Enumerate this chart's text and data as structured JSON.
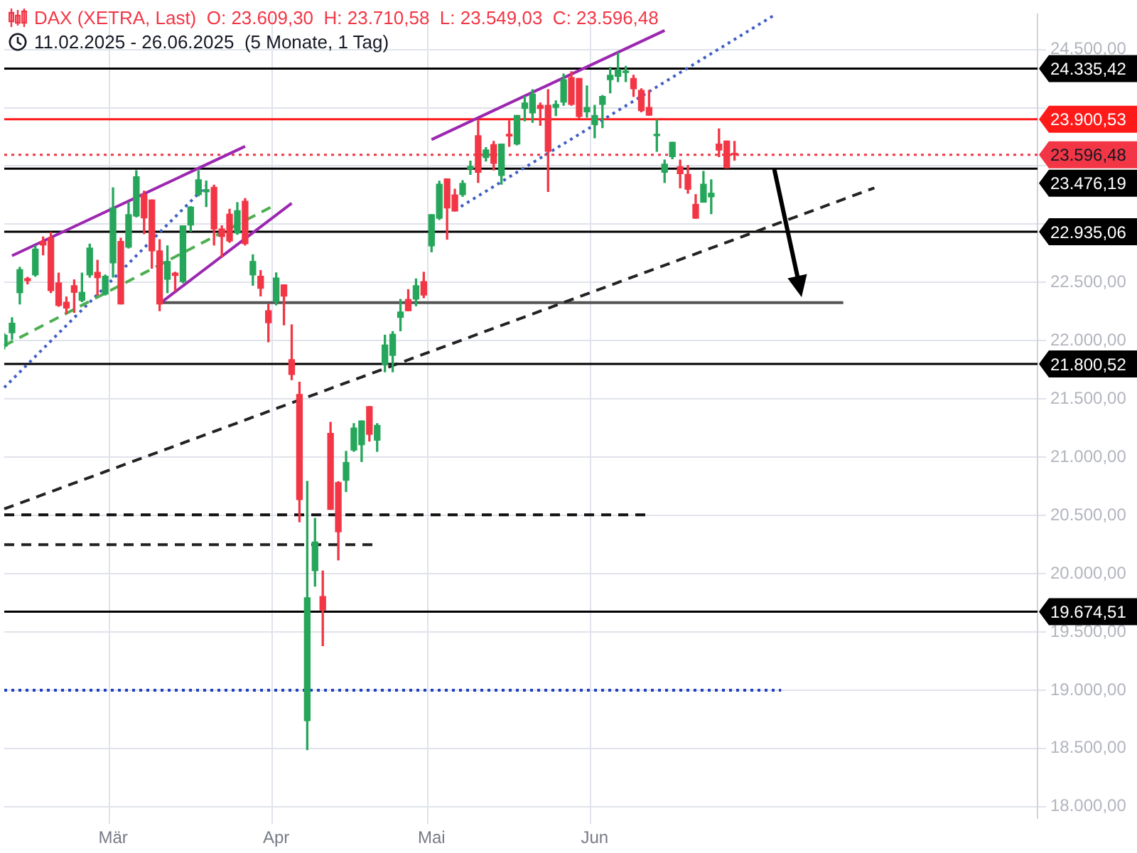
{
  "chart_data": {
    "type": "candlestick",
    "title": "DAX (XETRA, Last)  O: 23.609,30  H: 23.710,58  L: 23.549,03  C: 23.596,48",
    "subtitle": "11.02.2025 - 26.06.2025  (5 Monate, 1 Tag)",
    "categories": [
      null,
      null,
      null,
      null,
      null,
      null,
      null,
      null,
      null,
      null,
      null,
      null,
      null,
      null,
      "Mär",
      null,
      null,
      null,
      null,
      null,
      null,
      null,
      null,
      null,
      null,
      null,
      null,
      null,
      null,
      null,
      null,
      null,
      null,
      null,
      null,
      "Apr",
      null,
      null,
      null,
      null,
      null,
      null,
      null,
      null,
      null,
      null,
      null,
      null,
      null,
      null,
      null,
      null,
      null,
      null,
      null,
      "Mai",
      null,
      null,
      null,
      null,
      null,
      null,
      null,
      null,
      null,
      null,
      null,
      null,
      null,
      null,
      null,
      null,
      null,
      null,
      null,
      null,
      "Jun",
      null,
      null,
      null,
      null,
      null,
      null,
      null,
      null,
      null,
      null,
      null,
      null,
      null,
      null,
      null,
      null,
      null,
      null,
      null,
      null,
      null,
      null,
      null,
      null,
      null,
      null,
      null,
      null,
      null,
      null,
      null,
      null,
      null,
      null,
      null,
      null,
      null,
      null,
      null,
      null,
      null,
      null,
      null,
      null,
      null,
      null,
      null,
      null,
      null,
      null,
      null,
      null,
      null,
      null,
      null,
      null,
      null
    ],
    "ohlc": [
      [
        21952,
        22060,
        21930,
        22047
      ],
      [
        22068,
        22197,
        22013,
        22150
      ],
      [
        22412,
        22630,
        22315,
        22610
      ],
      [
        22533,
        22544,
        22487,
        22515
      ],
      [
        22565,
        22813,
        22553,
        22786
      ],
      [
        22852,
        22890,
        22737,
        22821
      ],
      [
        22883,
        22929,
        22412,
        22430
      ],
      [
        22496,
        22580,
        22295,
        22303
      ],
      [
        22330,
        22375,
        22234,
        22280
      ],
      [
        22472,
        22522,
        22243,
        22415
      ],
      [
        22346,
        22580,
        22335,
        22415
      ],
      [
        22565,
        22829,
        22545,
        22795
      ],
      [
        22587,
        22690,
        22392,
        22541
      ],
      [
        22400,
        22564,
        22392,
        22553
      ],
      [
        22668,
        23312,
        22545,
        23140
      ],
      [
        22852,
        22880,
        22315,
        22315
      ],
      [
        22803,
        23185,
        22795,
        23082
      ],
      [
        23070,
        23459,
        23062,
        23407
      ],
      [
        23254,
        23284,
        22918,
        23054
      ],
      [
        23208,
        23208,
        22622,
        22771
      ],
      [
        22771,
        22867,
        22257,
        22315
      ],
      [
        22527,
        22814,
        22412,
        22680
      ],
      [
        22580,
        22588,
        22430,
        22560
      ],
      [
        22508,
        22986,
        22497,
        22986
      ],
      [
        22993,
        23151,
        22939,
        23147
      ],
      [
        23254,
        23459,
        23243,
        23381
      ],
      [
        23278,
        23370,
        23151,
        23297
      ],
      [
        23316,
        23335,
        22821,
        22959
      ],
      [
        22959,
        22986,
        22720,
        22894
      ],
      [
        23086,
        23128,
        22844,
        22856
      ],
      [
        22924,
        23185,
        22913,
        23116
      ],
      [
        23197,
        23220,
        22821,
        22833
      ],
      [
        22565,
        22737,
        22476,
        22680
      ],
      [
        22553,
        22602,
        22384,
        22450
      ],
      [
        22257,
        22315,
        21990,
        22154
      ],
      [
        22335,
        22582,
        22307,
        22538
      ],
      [
        22479,
        22479,
        22136,
        22383
      ],
      [
        21837,
        22136,
        21665,
        21710
      ],
      [
        21538,
        21644,
        20445,
        20636
      ],
      [
        18738,
        20793,
        18490,
        19793
      ],
      [
        20026,
        20475,
        19893,
        20272
      ],
      [
        19804,
        20023,
        19382,
        19689
      ],
      [
        21204,
        21299,
        20552,
        20552
      ],
      [
        20782,
        20790,
        20118,
        20360
      ],
      [
        20802,
        21050,
        20705,
        20954
      ],
      [
        21061,
        21288,
        21050,
        21250
      ],
      [
        21107,
        21311,
        20962,
        21311
      ],
      [
        21434,
        21434,
        21138,
        21196
      ],
      [
        21146,
        21288,
        21050,
        21273
      ],
      [
        21797,
        22047,
        21733,
        21963
      ],
      [
        21874,
        22078,
        21733,
        22055
      ],
      [
        22200,
        22354,
        22085,
        22246
      ],
      [
        22354,
        22438,
        22257,
        22257
      ],
      [
        22357,
        22530,
        22300,
        22472
      ],
      [
        22507,
        22587,
        22369,
        22392
      ],
      [
        22814,
        23082,
        22763,
        23082
      ],
      [
        23051,
        23369,
        23040,
        23343
      ],
      [
        23389,
        23389,
        22871,
        23139
      ],
      [
        23251,
        23300,
        23113,
        23113
      ],
      [
        23254,
        23373,
        23239,
        23350
      ],
      [
        23476,
        23542,
        23427,
        23496
      ],
      [
        23760,
        23887,
        23358,
        23446
      ],
      [
        23573,
        23657,
        23542,
        23637
      ],
      [
        23683,
        23710,
        23465,
        23522
      ],
      [
        23419,
        23688,
        23343,
        23688
      ],
      [
        23772,
        23887,
        23668,
        23757
      ],
      [
        23688,
        23933,
        23680,
        23933
      ],
      [
        23994,
        24097,
        23887,
        24040
      ],
      [
        23956,
        24155,
        23875,
        24117
      ],
      [
        24021,
        24040,
        23849,
        23994
      ],
      [
        24021,
        24155,
        23281,
        23626
      ],
      [
        24002,
        24059,
        23933,
        24028
      ],
      [
        24048,
        24289,
        24021,
        24240
      ],
      [
        24258,
        24309,
        24021,
        24028
      ],
      [
        24251,
        24251,
        23910,
        23925
      ],
      [
        23964,
        24186,
        23918,
        24002
      ],
      [
        23856,
        24021,
        23741,
        23933
      ],
      [
        24028,
        24105,
        23829,
        24097
      ],
      [
        24240,
        24347,
        24128,
        24278
      ],
      [
        24270,
        24470,
        24224,
        24327
      ],
      [
        24302,
        24355,
        24224,
        24310
      ],
      [
        24251,
        24278,
        24097,
        24163
      ],
      [
        24148,
        24163,
        23964,
        23975
      ],
      [
        24002,
        24148,
        23936,
        23936
      ],
      [
        23760,
        23895,
        23626,
        23772
      ],
      [
        23446,
        23550,
        23358,
        23515
      ],
      [
        23580,
        23703,
        23561,
        23703
      ],
      [
        23492,
        23550,
        23312,
        23434
      ],
      [
        23427,
        23504,
        23266,
        23300
      ],
      [
        23170,
        23254,
        23051,
        23051
      ],
      [
        23189,
        23453,
        23189,
        23343
      ],
      [
        23235,
        23381,
        23090,
        23266
      ],
      [
        23688,
        23818,
        23580,
        23637
      ],
      [
        23714,
        23714,
        23484,
        23484
      ],
      [
        23609.3,
        23710.58,
        23549.03,
        23596.48
      ],
      null,
      null,
      null,
      null,
      null,
      null,
      null,
      null,
      null,
      null,
      null,
      null,
      null,
      null,
      null,
      null,
      null,
      null,
      null,
      null,
      null,
      null,
      null,
      null,
      null,
      null,
      null,
      null,
      null,
      null,
      null,
      null,
      null,
      null,
      null,
      null,
      null,
      null,
      null
    ],
    "colors": [
      "#26a65b",
      "#26a65b",
      "#26a65b",
      "#f23645",
      "#26a65b",
      "#f23645",
      "#f23645",
      "#f23645",
      "#f23645",
      "#f23645",
      "#26a65b",
      "#26a65b",
      "#f23645",
      "#26a65b",
      "#26a65b",
      "#f23645",
      "#26a65b",
      "#26a65b",
      "#f23645",
      "#f23645",
      "#f23645",
      "#26a65b",
      "#f23645",
      "#26a65b",
      "#26a65b",
      "#26a65b",
      "#26a65b",
      "#f23645",
      "#f23645",
      "#f23645",
      "#26a65b",
      "#f23645",
      "#26a65b",
      "#f23645",
      "#f23645",
      "#26a65b",
      "#f23645",
      "#f23645",
      "#f23645",
      "#26a65b",
      "#26a65b",
      "#f23645",
      "#f23645",
      "#f23645",
      "#26a65b",
      "#26a65b",
      "#26a65b",
      "#f23645",
      "#26a65b",
      "#26a65b",
      "#26a65b",
      "#26a65b",
      "#f23645",
      "#26a65b",
      "#f23645",
      "#26a65b",
      "#26a65b",
      "#f23645",
      "#f23645",
      "#26a65b",
      "#26a65b",
      "#f23645",
      "#26a65b",
      "#f23645",
      "#26a65b",
      "#f23645",
      "#26a65b",
      "#26a65b",
      "#26a65b",
      "#f23645",
      "#f23645",
      "#26a65b",
      "#26a65b",
      "#f23645",
      "#f23645",
      "#26a65b",
      "#26a65b",
      "#26a65b",
      "#26a65b",
      "#26a65b",
      "#26a65b",
      "#f23645",
      "#f23645",
      "#f23645",
      "#26a65b",
      "#26a65b",
      "#26a65b",
      "#f23645",
      "#f23645",
      "#f23645",
      "#26a65b",
      "#26a65b",
      "#f23645",
      "#f23645",
      "#f23645",
      null,
      null,
      null,
      null,
      null,
      null,
      null,
      null,
      null,
      null,
      null,
      null,
      null,
      null,
      null,
      null,
      null,
      null,
      null,
      null,
      null,
      null,
      null,
      null,
      null,
      null,
      null,
      null,
      null,
      null,
      null,
      null,
      null,
      null,
      null,
      null,
      null,
      null,
      null
    ],
    "series": [
      {
        "type": "line",
        "color": "#9c27b0",
        "line_style": "solid",
        "values": [
          null,
          22729,
          null,
          null,
          null,
          null,
          null,
          null,
          null,
          null,
          null,
          null,
          null,
          null,
          null,
          null,
          null,
          null,
          null,
          null,
          null,
          null,
          null,
          null,
          null,
          null,
          null,
          null,
          null,
          null,
          null,
          23668,
          null,
          null,
          null,
          null,
          null,
          null,
          null,
          null,
          null,
          null,
          null,
          null,
          null,
          null,
          null,
          null,
          null,
          null,
          null,
          null,
          null,
          null,
          null,
          null,
          null,
          null,
          null,
          null,
          null,
          null,
          null,
          null,
          null,
          null,
          null,
          null,
          null,
          null,
          null,
          null,
          null,
          null,
          null,
          null,
          null,
          null,
          null,
          null,
          null,
          null,
          null,
          null,
          null,
          null,
          null,
          null,
          null,
          null,
          null,
          null,
          null,
          null,
          null,
          null,
          null,
          null,
          null,
          null,
          null,
          null,
          null,
          null,
          null,
          null,
          null,
          null,
          null,
          null,
          null,
          null,
          null,
          null,
          null,
          null,
          null,
          null,
          null,
          null,
          null,
          null,
          null,
          null,
          null,
          null,
          null,
          null,
          null,
          null,
          null,
          null,
          null,
          null
        ]
      },
      {
        "type": "line",
        "color": "#9c27b0",
        "line_style": "solid",
        "values": [
          null,
          null,
          null,
          null,
          null,
          null,
          null,
          null,
          null,
          null,
          null,
          null,
          null,
          null,
          null,
          null,
          null,
          null,
          null,
          null,
          22318,
          null,
          null,
          null,
          null,
          null,
          null,
          null,
          null,
          null,
          null,
          null,
          null,
          null,
          null,
          null,
          null,
          23180,
          null,
          null,
          null,
          null,
          null,
          null,
          null,
          null,
          null,
          null,
          null,
          null,
          null,
          null,
          null,
          null,
          null,
          null,
          null,
          null,
          null,
          null,
          null,
          null,
          null,
          null,
          null,
          null,
          null,
          null,
          null,
          null,
          null,
          null,
          null,
          null,
          null,
          null,
          null,
          null,
          null,
          null,
          null,
          null,
          null,
          null,
          null,
          null,
          null,
          null,
          null,
          null,
          null,
          null,
          null,
          null,
          null,
          null,
          null,
          null,
          null,
          null,
          null,
          null,
          null,
          null,
          null,
          null,
          null,
          null,
          null,
          null,
          null,
          null,
          null,
          null,
          null,
          null,
          null,
          null,
          null,
          null,
          null,
          null,
          null,
          null,
          null,
          null,
          null,
          null,
          null,
          null,
          null,
          null,
          null,
          null
        ]
      },
      {
        "type": "line",
        "color": "#4caf50",
        "line_style": "dashed",
        "values": [
          21958,
          null,
          null,
          null,
          null,
          null,
          null,
          null,
          null,
          null,
          null,
          null,
          null,
          null,
          null,
          null,
          null,
          null,
          null,
          null,
          null,
          null,
          null,
          null,
          null,
          null,
          null,
          null,
          null,
          null,
          null,
          null,
          null,
          null,
          null,
          23170,
          null,
          null,
          null,
          null,
          null,
          null,
          null,
          null,
          null,
          null,
          null,
          null,
          null,
          null,
          null,
          null,
          null,
          null,
          null,
          null,
          null,
          null,
          null,
          null,
          null,
          null,
          null,
          null,
          null,
          null,
          null,
          null,
          null,
          null,
          null,
          null,
          null,
          null,
          null,
          null,
          null,
          null,
          null,
          null,
          null,
          null,
          null,
          null,
          null,
          null,
          null,
          null,
          null,
          null,
          null,
          null,
          null,
          null,
          null,
          null,
          null,
          null,
          null,
          null,
          null,
          null,
          null,
          null,
          null,
          null,
          null,
          null,
          null,
          null,
          null,
          null,
          null,
          null,
          null,
          null,
          null,
          null,
          null,
          null,
          null,
          null,
          null,
          null,
          null,
          null,
          null,
          null,
          null,
          null,
          null,
          null,
          null,
          null
        ]
      },
      {
        "type": "line",
        "color": "#3f5fc4",
        "line_style": "dotted",
        "values": [
          21598,
          null,
          null,
          null,
          null,
          null,
          null,
          null,
          null,
          null,
          null,
          null,
          null,
          null,
          null,
          null,
          null,
          null,
          null,
          null,
          null,
          null,
          null,
          null,
          null,
          null,
          23329,
          null,
          null,
          null,
          null,
          null,
          null,
          null,
          null,
          null,
          null,
          null,
          null,
          null,
          null,
          null,
          null,
          null,
          null,
          null,
          null,
          null,
          null,
          null,
          null,
          null,
          null,
          null,
          null,
          null,
          null,
          null,
          null,
          null,
          null,
          null,
          null,
          null,
          null,
          null,
          null,
          null,
          null,
          null,
          null,
          null,
          null,
          null,
          null,
          null,
          null,
          null,
          null,
          null,
          null,
          null,
          null,
          null,
          null,
          null,
          null,
          null,
          null,
          null,
          null,
          null,
          null,
          null,
          null,
          null,
          null,
          null,
          null,
          null,
          null,
          null,
          null,
          null,
          null,
          null,
          null,
          null,
          null,
          null,
          null,
          null,
          null,
          null,
          null,
          null,
          null,
          null,
          null,
          null,
          null,
          null,
          null,
          null,
          null,
          null,
          null,
          null,
          null,
          null,
          null,
          null,
          null,
          null
        ]
      },
      {
        "type": "line",
        "color": "#3f5fc4",
        "line_style": "dotted",
        "values": [
          null,
          null,
          null,
          null,
          null,
          null,
          null,
          null,
          null,
          null,
          null,
          null,
          null,
          null,
          null,
          null,
          null,
          null,
          null,
          null,
          null,
          null,
          null,
          null,
          null,
          null,
          null,
          null,
          null,
          null,
          null,
          null,
          null,
          null,
          null,
          null,
          null,
          null,
          null,
          null,
          null,
          null,
          null,
          null,
          null,
          null,
          null,
          null,
          null,
          null,
          null,
          null,
          null,
          null,
          null,
          null,
          null,
          null,
          23120,
          null,
          null,
          null,
          null,
          null,
          null,
          null,
          null,
          null,
          null,
          null,
          null,
          null,
          null,
          null,
          null,
          null,
          null,
          null,
          null,
          null,
          null,
          null,
          null,
          null,
          null,
          null,
          null,
          null,
          null,
          null,
          null,
          null,
          null,
          null,
          null,
          null,
          null,
          null,
          null,
          24790,
          null,
          null,
          null,
          null,
          null,
          null,
          null,
          null,
          null,
          null,
          null,
          null,
          null,
          null,
          null,
          null,
          null,
          null,
          null,
          null,
          null,
          null,
          null,
          null,
          null,
          null,
          null,
          null,
          null,
          null,
          null,
          null,
          null,
          null
        ]
      },
      {
        "type": "line",
        "color": "#9c27b0",
        "line_style": "solid",
        "values": [
          null,
          null,
          null,
          null,
          null,
          null,
          null,
          null,
          null,
          null,
          null,
          null,
          null,
          null,
          null,
          null,
          null,
          null,
          null,
          null,
          null,
          null,
          null,
          null,
          null,
          null,
          null,
          null,
          null,
          null,
          null,
          null,
          null,
          null,
          null,
          null,
          null,
          null,
          null,
          null,
          null,
          null,
          null,
          null,
          null,
          null,
          null,
          null,
          null,
          null,
          null,
          null,
          null,
          null,
          null,
          23726,
          null,
          null,
          null,
          null,
          null,
          null,
          null,
          null,
          null,
          null,
          null,
          null,
          null,
          null,
          null,
          null,
          null,
          null,
          null,
          null,
          null,
          null,
          null,
          null,
          null,
          null,
          null,
          null,
          null,
          24663,
          null,
          null,
          null,
          null,
          null,
          null,
          null,
          null,
          null,
          null,
          null,
          null,
          null,
          null,
          null,
          null,
          null,
          null,
          null,
          null,
          null,
          null,
          null,
          null,
          null,
          null,
          null,
          null,
          null,
          null,
          null,
          null,
          null,
          null,
          null,
          null,
          null,
          null,
          null,
          null,
          null,
          null,
          null,
          null,
          null,
          null,
          null,
          null
        ]
      },
      {
        "type": "line",
        "color": "#222222",
        "line_style": "dashed",
        "values": [
          20556,
          null,
          null,
          null,
          null,
          null,
          null,
          null,
          null,
          null,
          null,
          null,
          null,
          null,
          null,
          null,
          null,
          null,
          null,
          null,
          null,
          null,
          null,
          null,
          null,
          null,
          null,
          null,
          null,
          null,
          null,
          null,
          null,
          null,
          null,
          null,
          null,
          null,
          null,
          null,
          null,
          null,
          null,
          null,
          null,
          null,
          null,
          null,
          null,
          null,
          null,
          null,
          null,
          null,
          null,
          null,
          null,
          null,
          null,
          null,
          null,
          null,
          null,
          null,
          null,
          null,
          null,
          null,
          null,
          null,
          null,
          null,
          null,
          null,
          null,
          null,
          null,
          null,
          null,
          null,
          null,
          null,
          null,
          null,
          null,
          null,
          null,
          null,
          null,
          null,
          null,
          null,
          null,
          null,
          null,
          null,
          null,
          null,
          null,
          null,
          null,
          null,
          null,
          null,
          null,
          null,
          null,
          null,
          null,
          null,
          null,
          null,
          23312,
          null,
          null,
          null,
          null,
          null,
          null,
          null,
          null,
          null,
          null,
          null,
          null,
          null,
          null,
          null,
          null,
          null,
          null,
          null,
          null,
          null
        ]
      },
      {
        "type": "line",
        "color": "#111111",
        "line_style": "dashed",
        "values": [
          20505,
          null,
          null,
          null,
          null,
          null,
          null,
          null,
          null,
          null,
          null,
          null,
          null,
          null,
          null,
          null,
          null,
          null,
          null,
          null,
          null,
          null,
          null,
          null,
          null,
          null,
          null,
          null,
          null,
          null,
          null,
          null,
          null,
          null,
          null,
          null,
          null,
          null,
          null,
          null,
          null,
          null,
          null,
          null,
          null,
          null,
          null,
          null,
          null,
          null,
          null,
          null,
          null,
          null,
          null,
          null,
          null,
          null,
          null,
          null,
          null,
          null,
          null,
          null,
          null,
          null,
          null,
          null,
          null,
          null,
          null,
          null,
          null,
          null,
          null,
          null,
          null,
          null,
          null,
          null,
          null,
          null,
          null,
          20505,
          null,
          null,
          null,
          null,
          null,
          null,
          null,
          null,
          null,
          null,
          null,
          null,
          null,
          null,
          null,
          null,
          null,
          null,
          null,
          null,
          null,
          null,
          null,
          null,
          null,
          null,
          null,
          null,
          null,
          null,
          null,
          null,
          null,
          null,
          null,
          null,
          null,
          null,
          null,
          null,
          null,
          null,
          null,
          null,
          null,
          null,
          null,
          null,
          null,
          null
        ]
      },
      {
        "type": "line",
        "color": "#222222",
        "line_style": "dashed",
        "values": [
          20249,
          null,
          null,
          null,
          null,
          null,
          null,
          null,
          null,
          null,
          null,
          null,
          null,
          null,
          null,
          null,
          null,
          null,
          null,
          null,
          null,
          null,
          null,
          null,
          null,
          null,
          null,
          null,
          null,
          null,
          null,
          null,
          null,
          null,
          null,
          null,
          null,
          null,
          null,
          null,
          null,
          null,
          null,
          null,
          null,
          null,
          null,
          null,
          20249,
          null,
          null,
          null,
          null,
          null,
          null,
          null,
          null,
          null,
          null,
          null,
          null,
          null,
          null,
          null,
          null,
          null,
          null,
          null,
          null,
          null,
          null,
          null,
          null,
          null,
          null,
          null,
          null,
          null,
          null,
          null,
          null,
          null,
          null,
          null,
          null,
          null,
          null,
          null,
          null,
          null,
          null,
          null,
          null,
          null,
          null,
          null,
          null,
          null,
          null,
          null,
          null,
          null,
          null,
          null,
          null,
          null,
          null,
          null,
          null,
          null,
          null,
          null,
          null,
          null,
          null,
          null,
          null,
          null,
          null,
          null,
          null,
          null,
          null,
          null,
          null,
          null,
          null,
          null,
          null,
          null,
          null,
          null,
          null,
          null
        ]
      },
      {
        "type": "line",
        "color": "#1f3fbf",
        "line_style": "dotted",
        "values": [
          19000,
          null,
          null,
          null,
          null,
          null,
          null,
          null,
          null,
          null,
          null,
          null,
          null,
          null,
          null,
          null,
          null,
          null,
          null,
          null,
          null,
          null,
          null,
          null,
          null,
          null,
          null,
          null,
          null,
          null,
          null,
          null,
          null,
          null,
          null,
          null,
          null,
          null,
          null,
          null,
          null,
          null,
          null,
          null,
          null,
          null,
          null,
          null,
          null,
          null,
          null,
          null,
          null,
          null,
          null,
          null,
          null,
          null,
          null,
          null,
          null,
          null,
          null,
          null,
          null,
          null,
          null,
          null,
          null,
          null,
          null,
          null,
          null,
          null,
          null,
          null,
          null,
          null,
          null,
          null,
          null,
          null,
          null,
          null,
          null,
          null,
          null,
          null,
          null,
          null,
          null,
          null,
          null,
          null,
          null,
          null,
          null,
          null,
          null,
          null,
          19000,
          null,
          null,
          null,
          null,
          null,
          null,
          null,
          null,
          null,
          null,
          null,
          null,
          null,
          null,
          null,
          null,
          null,
          null,
          null,
          null,
          null,
          null,
          null,
          null,
          null,
          null,
          null,
          null,
          null,
          null,
          null,
          null,
          null
        ]
      },
      {
        "type": "line",
        "color": "#555555",
        "line_style": "solid",
        "values": [
          null,
          null,
          null,
          null,
          null,
          null,
          null,
          null,
          null,
          null,
          null,
          null,
          null,
          null,
          null,
          null,
          null,
          null,
          null,
          null,
          22326,
          null,
          null,
          null,
          null,
          null,
          null,
          null,
          null,
          null,
          null,
          null,
          null,
          null,
          null,
          null,
          null,
          null,
          null,
          null,
          null,
          null,
          null,
          null,
          null,
          null,
          null,
          null,
          null,
          null,
          null,
          null,
          null,
          null,
          null,
          null,
          null,
          null,
          null,
          null,
          null,
          null,
          null,
          null,
          null,
          null,
          null,
          null,
          null,
          null,
          null,
          null,
          null,
          null,
          null,
          null,
          null,
          null,
          null,
          null,
          null,
          null,
          null,
          null,
          null,
          null,
          null,
          null,
          null,
          null,
          null,
          null,
          null,
          null,
          null,
          null,
          null,
          null,
          null,
          null,
          null,
          null,
          null,
          null,
          null,
          null,
          null,
          null,
          22326,
          null,
          null,
          null,
          null,
          null,
          null,
          null,
          null,
          null,
          null,
          null,
          null,
          null,
          null,
          null,
          null,
          null,
          null,
          null,
          null,
          null,
          null,
          null,
          null,
          null
        ]
      }
    ],
    "ylim": [
      17900,
      24800
    ],
    "yticks": [
      {
        "value": 18000,
        "label": "18.000,00"
      },
      {
        "value": 18500,
        "label": "18.500,00"
      },
      {
        "value": 19000,
        "label": "19.000,00"
      },
      {
        "value": 19500,
        "label": "19.500,00"
      },
      {
        "value": 20000,
        "label": "20.000,00"
      },
      {
        "value": 20500,
        "label": "20.500,00"
      },
      {
        "value": 21000,
        "label": "21.000,00"
      },
      {
        "value": 21500,
        "label": "21.500,00"
      },
      {
        "value": 22000,
        "label": "22.000,00"
      },
      {
        "value": 22500,
        "label": "22.500,00"
      },
      {
        "value": 23000,
        "label": null
      },
      {
        "value": 23500,
        "label": null
      },
      {
        "value": 24000,
        "label": null
      },
      {
        "value": 24500,
        "label": "24.500,00"
      }
    ],
    "ref_lines": [
      {
        "axis": "y",
        "value": 24335.42,
        "label": "24.335,42",
        "color": "#000000"
      },
      {
        "axis": "y",
        "value": 23900.53,
        "label": "23.900,53",
        "color": "#ff1a1a"
      },
      {
        "axis": "y",
        "value": 23596.48,
        "label": "23.596,48",
        "color": "#f23645",
        "line_style": "dotted"
      },
      {
        "axis": "y",
        "value": 23476.19,
        "label": "23.476,19",
        "color": "#000000"
      },
      {
        "axis": "y",
        "value": 22935.06,
        "label": "22.935,06",
        "color": "#000000"
      },
      {
        "axis": "y",
        "value": 21800.52,
        "label": "21.800,52",
        "color": "#000000"
      },
      {
        "axis": "y",
        "value": 19674.51,
        "label": "19.674,51",
        "color": "#000000"
      }
    ],
    "grid": true
  }
}
